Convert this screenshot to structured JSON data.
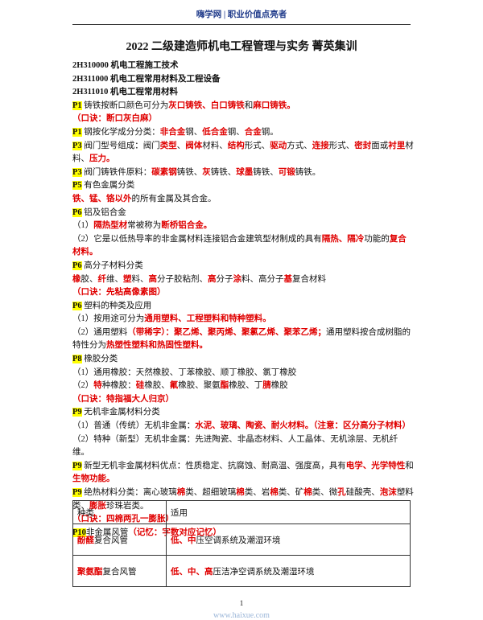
{
  "header": {
    "brand": "嗨学网 | 职业价值点亮者"
  },
  "title": "2022 二级建造师机电工程管理与实务 菁英集训",
  "lines": [
    {
      "bold": true,
      "runs": [
        "2H310000 机电工程施工技术"
      ]
    },
    {
      "bold": true,
      "runs": [
        "2H311000 机电工程常用材料及工程设备"
      ]
    },
    {
      "bold": true,
      "runs": [
        "2H311010 机电工程常用材料"
      ]
    },
    {
      "runs": [
        {
          "text": "P1",
          "highlight": "#ffff00",
          "bold": true
        },
        " 铸铁按断口颜色可分为",
        {
          "text": "灰口铸铁、白口铸铁",
          "color": "#e00000",
          "bold": true
        },
        "和",
        {
          "text": "麻口铸铁。",
          "color": "#e00000",
          "bold": true
        }
      ]
    },
    {
      "runs": [
        {
          "text": "（口诀：断口灰白麻）",
          "color": "#e00000",
          "bold": true
        }
      ]
    },
    {
      "runs": [
        {
          "text": "P1",
          "highlight": "#ffff00",
          "bold": true
        },
        " 钢按化学成分分类：",
        {
          "text": "非合金",
          "color": "#e00000",
          "bold": true
        },
        "钢、",
        {
          "text": "低合金",
          "color": "#e00000",
          "bold": true
        },
        "钢、",
        {
          "text": "合金",
          "color": "#e00000",
          "bold": true
        },
        "钢。"
      ]
    },
    {
      "runs": [
        {
          "text": "P3",
          "highlight": "#ffff00",
          "bold": true
        },
        " 阀门型号组成：阀门",
        {
          "text": "类型",
          "color": "#e00000",
          "bold": true
        },
        "、",
        {
          "text": "阀体",
          "color": "#e00000",
          "bold": true
        },
        "材料、",
        {
          "text": "结构",
          "color": "#e00000",
          "bold": true
        },
        "形式、",
        {
          "text": "驱动",
          "color": "#e00000",
          "bold": true
        },
        "方式、",
        {
          "text": "连接",
          "color": "#e00000",
          "bold": true
        },
        "形式、",
        {
          "text": "密封",
          "color": "#e00000",
          "bold": true
        },
        "面或",
        {
          "text": "衬里",
          "color": "#e00000",
          "bold": true
        },
        "材料、",
        {
          "text": "压力。",
          "color": "#e00000",
          "bold": true
        }
      ]
    },
    {
      "runs": [
        {
          "text": "P3",
          "highlight": "#ffff00",
          "bold": true
        },
        " 阀门铸铁件原料：",
        {
          "text": "碳素钢",
          "color": "#e00000",
          "bold": true
        },
        "铸铁、",
        {
          "text": "灰",
          "color": "#e00000",
          "bold": true
        },
        "铸铁、",
        {
          "text": "球墨",
          "color": "#e00000",
          "bold": true
        },
        "铸铁、",
        {
          "text": "可锻",
          "color": "#e00000",
          "bold": true
        },
        "铸铁。"
      ]
    },
    {
      "runs": [
        {
          "text": "P5",
          "highlight": "#ffff00",
          "bold": true
        },
        " 有色金属分类"
      ]
    },
    {
      "runs": [
        {
          "text": "铁、锰、铬以外",
          "color": "#e00000",
          "bold": true
        },
        "的所有金属及其合金。"
      ]
    },
    {
      "runs": [
        {
          "text": "P6",
          "highlight": "#ffff00",
          "bold": true
        },
        " 铝及铝合金"
      ]
    },
    {
      "runs": [
        "（1）",
        {
          "text": "隔热型材",
          "color": "#e00000",
          "bold": true
        },
        "常被称为",
        {
          "text": "断桥铝合金。",
          "color": "#e00000",
          "bold": true
        }
      ]
    },
    {
      "runs": [
        "（2）它是以低热导率的非金属材料连接铝合金建筑型材制成的具有",
        {
          "text": "隔热、隔冷",
          "color": "#e00000",
          "bold": true
        },
        "功能的",
        {
          "text": "复合材料。",
          "color": "#e00000",
          "bold": true
        }
      ]
    },
    {
      "runs": [
        {
          "text": "P6",
          "highlight": "#ffff00",
          "bold": true
        },
        " 高分子材料分类"
      ]
    },
    {
      "runs": [
        {
          "text": "橡",
          "color": "#e00000",
          "bold": true
        },
        "胶、",
        {
          "text": "纤",
          "color": "#e00000",
          "bold": true
        },
        "维、",
        {
          "text": "塑",
          "color": "#e00000",
          "bold": true
        },
        "料、",
        {
          "text": "高",
          "color": "#e00000",
          "bold": true
        },
        "分子胶粘剂、",
        {
          "text": "高",
          "color": "#e00000",
          "bold": true
        },
        "分子",
        {
          "text": "涂",
          "color": "#e00000",
          "bold": true
        },
        "料、高分子",
        {
          "text": "基",
          "color": "#e00000",
          "bold": true
        },
        "复合材料"
      ]
    },
    {
      "runs": [
        {
          "text": "（口诀：先粘高像素图）",
          "color": "#e00000",
          "bold": true
        }
      ]
    },
    {
      "runs": [
        {
          "text": "P6",
          "highlight": "#ffff00",
          "bold": true
        },
        " 塑料的种类及应用"
      ]
    },
    {
      "runs": [
        "（1）按用途可分为",
        {
          "text": "通用塑料、工程塑料和特种塑料。",
          "color": "#e00000",
          "bold": true
        }
      ]
    },
    {
      "runs": [
        "（2）通用塑料",
        {
          "text": "（带稀字）：聚乙烯、聚丙烯、聚氯乙烯、聚苯乙烯；",
          "color": "#e00000",
          "bold": true
        },
        "通用塑料按合成树脂的特性分为",
        {
          "text": "热塑性塑料和热固性塑料。",
          "color": "#e00000",
          "bold": true
        }
      ]
    },
    {
      "runs": [
        {
          "text": "P8",
          "highlight": "#ffff00",
          "bold": true
        },
        " 橡胶分类"
      ]
    },
    {
      "runs": [
        "（1）通用橡胶：天然橡胶、丁苯橡胶、顺丁橡胶、氯丁橡胶"
      ]
    },
    {
      "runs": [
        "（2）",
        {
          "text": "特",
          "color": "#e00000",
          "bold": true
        },
        "种橡胶：",
        {
          "text": "硅",
          "color": "#e00000",
          "bold": true
        },
        "橡胶、",
        {
          "text": "氟",
          "color": "#e00000",
          "bold": true
        },
        "橡胶、聚氨",
        {
          "text": "酯",
          "color": "#e00000",
          "bold": true
        },
        "橡胶、丁",
        {
          "text": "腈",
          "color": "#e00000",
          "bold": true
        },
        "橡胶"
      ]
    },
    {
      "runs": [
        {
          "text": "（口诀：特指福大人归京）",
          "color": "#e00000",
          "bold": true
        }
      ]
    },
    {
      "runs": [
        {
          "text": "P9",
          "highlight": "#ffff00",
          "bold": true
        },
        " 无机非金属材料分类"
      ]
    },
    {
      "runs": [
        "（1）普通（传统）无机非金属：",
        {
          "text": "水泥、玻璃、陶瓷、耐火材料。（注意：区分高分子材料）",
          "color": "#e00000",
          "bold": true
        }
      ]
    },
    {
      "runs": [
        "（2）特种（新型）无机非金属：先进陶瓷、非晶态材料、人工晶体、无机涂层、无机纤维。"
      ]
    },
    {
      "runs": [
        {
          "text": "P9",
          "highlight": "#ffff00",
          "bold": true
        },
        " 新型无机非金属材料优点：性质稳定、抗腐蚀、耐高温、强度高，具有",
        {
          "text": "电学、光学特性",
          "color": "#e00000",
          "bold": true
        },
        "和",
        {
          "text": "生物功能。",
          "color": "#e00000",
          "bold": true
        }
      ]
    },
    {
      "runs": [
        {
          "text": "P9",
          "highlight": "#ffff00",
          "bold": true
        },
        " 绝热材料分类：离心玻璃",
        {
          "text": "棉",
          "color": "#e00000",
          "bold": true
        },
        "类、超细玻璃",
        {
          "text": "棉",
          "color": "#e00000",
          "bold": true
        },
        "类、岩",
        {
          "text": "棉",
          "color": "#e00000",
          "bold": true
        },
        "类、矿",
        {
          "text": "棉",
          "color": "#e00000",
          "bold": true
        },
        "类、微",
        {
          "text": "孔",
          "color": "#e00000",
          "bold": true
        },
        "硅酸壳、",
        {
          "text": "泡沫",
          "color": "#e00000",
          "bold": true
        },
        "塑料类、",
        {
          "text": "膨胀",
          "color": "#e00000",
          "bold": true
        },
        "珍珠岩类。"
      ]
    },
    {
      "runs": [
        {
          "text": "（口诀：四棉两孔一膨胀）",
          "color": "#e00000",
          "bold": true
        }
      ]
    },
    {
      "runs": [
        {
          "text": "P10",
          "highlight": "#ffff00",
          "bold": true
        },
        "非金属风管",
        {
          "text": "（记忆：字数对应记忆）",
          "color": "#e00000",
          "bold": true
        }
      ]
    }
  ],
  "table": {
    "header": [
      "种类",
      "适用"
    ],
    "rows": [
      [
        {
          "runs": [
            {
              "text": "酚醛",
              "color": "#e00000",
              "bold": true
            },
            "复合风管"
          ]
        },
        {
          "runs": [
            {
              "text": "低、中",
              "color": "#e00000",
              "bold": true
            },
            "压空调系统及潮湿环境"
          ]
        }
      ],
      [
        {
          "runs": [
            {
              "text": "聚氨酯",
              "color": "#e00000",
              "bold": true
            },
            "复合风管"
          ]
        },
        {
          "runs": [
            {
              "text": "低、中、高",
              "color": "#e00000",
              "bold": true
            },
            "压洁净空调系统及潮湿环境"
          ]
        }
      ]
    ]
  },
  "footer": {
    "page": "1",
    "url": "www.haixue.com"
  }
}
